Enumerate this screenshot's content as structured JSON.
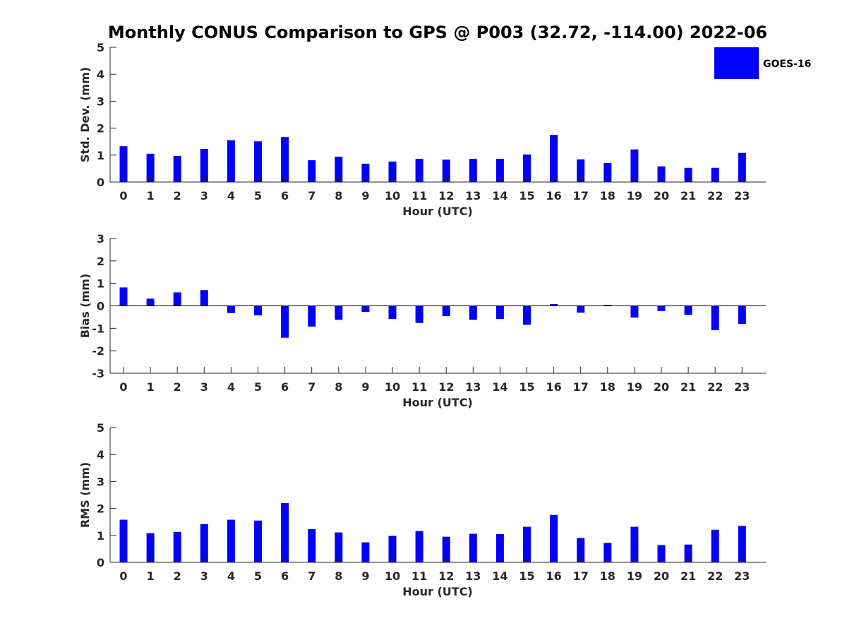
{
  "title": "Monthly CONUS Comparison to GPS @ P003 (32.72, -114.00) 2022-06",
  "legend": {
    "label": "GOES-16",
    "color": "#0000ff"
  },
  "chart_data": [
    {
      "type": "bar",
      "title": "",
      "xlabel": "Hour (UTC)",
      "ylabel": "Std. Dev. (mm)",
      "ylim": [
        0,
        5
      ],
      "yticks": [
        0,
        1,
        2,
        3,
        4,
        5
      ],
      "categories": [
        "0",
        "1",
        "2",
        "3",
        "4",
        "5",
        "6",
        "7",
        "8",
        "9",
        "10",
        "11",
        "12",
        "13",
        "14",
        "15",
        "16",
        "17",
        "18",
        "19",
        "20",
        "21",
        "22",
        "23"
      ],
      "series": [
        {
          "name": "GOES-16",
          "values": [
            1.33,
            1.05,
            0.97,
            1.23,
            1.55,
            1.51,
            1.67,
            0.81,
            0.94,
            0.68,
            0.76,
            0.86,
            0.83,
            0.86,
            0.86,
            1.02,
            1.75,
            0.84,
            0.71,
            1.21,
            0.58,
            0.53,
            0.53,
            1.08
          ]
        }
      ],
      "grid": false
    },
    {
      "type": "bar",
      "title": "",
      "xlabel": "Hour (UTC)",
      "ylabel": "Bias (mm)",
      "ylim": [
        -3,
        3
      ],
      "yticks": [
        -3,
        -2,
        -1,
        0,
        1,
        2,
        3
      ],
      "categories": [
        "0",
        "1",
        "2",
        "3",
        "4",
        "5",
        "6",
        "7",
        "8",
        "9",
        "10",
        "11",
        "12",
        "13",
        "14",
        "15",
        "16",
        "17",
        "18",
        "19",
        "20",
        "21",
        "22",
        "23"
      ],
      "series": [
        {
          "name": "GOES-16",
          "values": [
            0.82,
            0.32,
            0.6,
            0.7,
            -0.32,
            -0.42,
            -1.42,
            -0.92,
            -0.62,
            -0.27,
            -0.58,
            -0.76,
            -0.46,
            -0.62,
            -0.58,
            -0.84,
            0.08,
            -0.3,
            0.04,
            -0.52,
            -0.23,
            -0.4,
            -1.08,
            -0.8
          ]
        }
      ],
      "grid": false
    },
    {
      "type": "bar",
      "title": "",
      "xlabel": "Hour (UTC)",
      "ylabel": "RMS (mm)",
      "ylim": [
        0,
        5
      ],
      "yticks": [
        0,
        1,
        2,
        3,
        4,
        5
      ],
      "categories": [
        "0",
        "1",
        "2",
        "3",
        "4",
        "5",
        "6",
        "7",
        "8",
        "9",
        "10",
        "11",
        "12",
        "13",
        "14",
        "15",
        "16",
        "17",
        "18",
        "19",
        "20",
        "21",
        "22",
        "23"
      ],
      "series": [
        {
          "name": "GOES-16",
          "values": [
            1.58,
            1.08,
            1.13,
            1.42,
            1.58,
            1.55,
            2.2,
            1.23,
            1.11,
            0.74,
            0.98,
            1.16,
            0.95,
            1.06,
            1.05,
            1.32,
            1.76,
            0.9,
            0.72,
            1.32,
            0.64,
            0.66,
            1.21,
            1.35
          ]
        }
      ],
      "grid": false
    }
  ]
}
